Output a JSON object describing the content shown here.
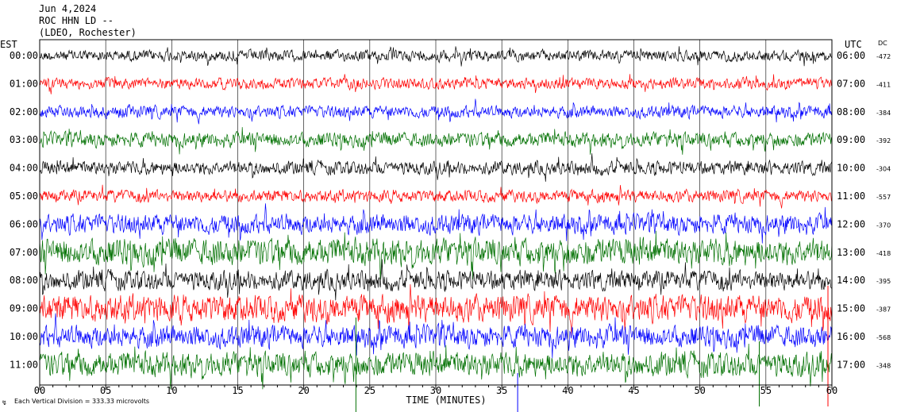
{
  "header": {
    "date": "Jun 4,2024",
    "station": "ROC HHN LD --",
    "network": "(LDEO, Rochester)"
  },
  "left_axis_label": "EST",
  "right_axis_label": "UTC",
  "dc_label": "DC",
  "footer": {
    "note": "Each Vertical Division =  333.33 microvolts",
    "xlabel": "TIME (MINUTES)"
  },
  "colors": {
    "trace_cycle": [
      "#000000",
      "#ff0000",
      "#0000ff",
      "#007000"
    ],
    "grid": "#000000",
    "background": "#ffffff"
  },
  "chart_data": {
    "type": "line",
    "xlabel": "TIME (MINUTES)",
    "xlim": [
      0,
      60
    ],
    "x_ticks": [
      "00",
      "05",
      "10",
      "15",
      "20",
      "25",
      "30",
      "35",
      "40",
      "45",
      "50",
      "55",
      "60"
    ],
    "rows": [
      {
        "est": "00:00",
        "utc": "06:00",
        "dc": "-472",
        "color": "#000000",
        "amplitude": 9
      },
      {
        "est": "01:00",
        "utc": "07:00",
        "dc": "-411",
        "color": "#ff0000",
        "amplitude": 9
      },
      {
        "est": "02:00",
        "utc": "08:00",
        "dc": "-384",
        "color": "#0000ff",
        "amplitude": 10
      },
      {
        "est": "03:00",
        "utc": "09:00",
        "dc": "-392",
        "color": "#007000",
        "amplitude": 12
      },
      {
        "est": "04:00",
        "utc": "10:00",
        "dc": "-304",
        "color": "#000000",
        "amplitude": 11
      },
      {
        "est": "05:00",
        "utc": "11:00",
        "dc": "-557",
        "color": "#ff0000",
        "amplitude": 10
      },
      {
        "est": "06:00",
        "utc": "12:00",
        "dc": "-370",
        "color": "#0000ff",
        "amplitude": 16
      },
      {
        "est": "07:00",
        "utc": "13:00",
        "dc": "-418",
        "color": "#007000",
        "amplitude": 22
      },
      {
        "est": "08:00",
        "utc": "14:00",
        "dc": "-395",
        "color": "#000000",
        "amplitude": 16
      },
      {
        "est": "09:00",
        "utc": "15:00",
        "dc": "-387",
        "color": "#ff0000",
        "amplitude": 22
      },
      {
        "est": "10:00",
        "utc": "16:00",
        "dc": "-568",
        "color": "#0000ff",
        "amplitude": 18
      },
      {
        "est": "11:00",
        "utc": "17:00",
        "dc": "-348",
        "color": "#007000",
        "amplitude": 20
      }
    ]
  }
}
